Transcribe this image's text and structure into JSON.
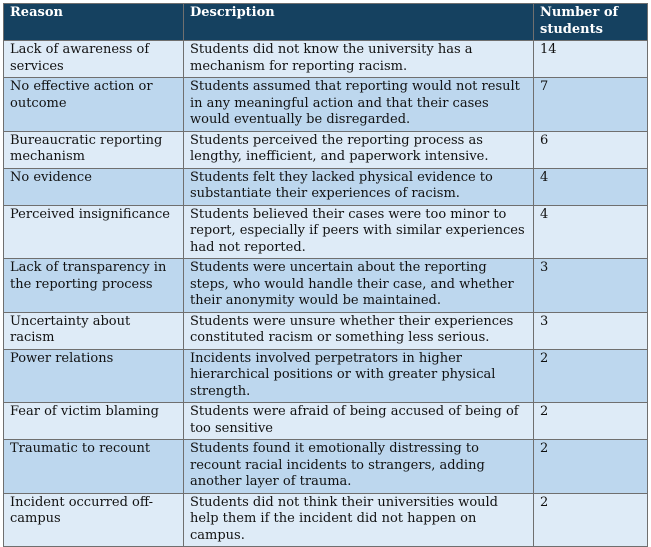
{
  "table": {
    "headers": {
      "reason": "Reason",
      "description": "Description",
      "count": "Number of students"
    },
    "rows": [
      {
        "reason": "Lack of awareness of services",
        "description": "Students did not know the university has a mechanism for reporting racism.",
        "count": "14"
      },
      {
        "reason": "No effective action or outcome",
        "description": "Students assumed that reporting would not result in any meaningful action and that their cases would eventually be disregarded.",
        "count": "7"
      },
      {
        "reason": "Bureaucratic reporting mechanism",
        "description": "Students perceived the reporting process as lengthy, inefficient, and paperwork intensive.",
        "count": "6"
      },
      {
        "reason": "No evidence",
        "description": "Students felt they lacked physical evidence to substantiate their experiences of racism.",
        "count": "4"
      },
      {
        "reason": "Perceived insignificance",
        "description": "Students believed their cases were too minor to report, especially if peers with similar experiences had not reported.",
        "count": "4"
      },
      {
        "reason": "Lack of transparency in the reporting process",
        "description": "Students were uncertain about the reporting steps, who would handle their case, and whether their anonymity would be maintained.",
        "count": "3"
      },
      {
        "reason": "Uncertainty about racism",
        "description": "Students were unsure whether their experiences constituted racism or something less serious.",
        "count": "3"
      },
      {
        "reason": "Power relations",
        "description": "Incidents involved perpetrators in higher hierarchical positions or with greater physical strength.",
        "count": "2"
      },
      {
        "reason": "Fear of victim blaming",
        "description": "Students were afraid of being accused of being of too sensitive",
        "count": "2"
      },
      {
        "reason": "Traumatic to recount",
        "description": "Students found it emotionally distressing to recount racial incidents to strangers, adding another layer of trauma.",
        "count": "2"
      },
      {
        "reason": "Incident occurred off-campus",
        "description": "Students did not think their universities would help them if the incident did not happen on campus.",
        "count": "2"
      }
    ]
  }
}
